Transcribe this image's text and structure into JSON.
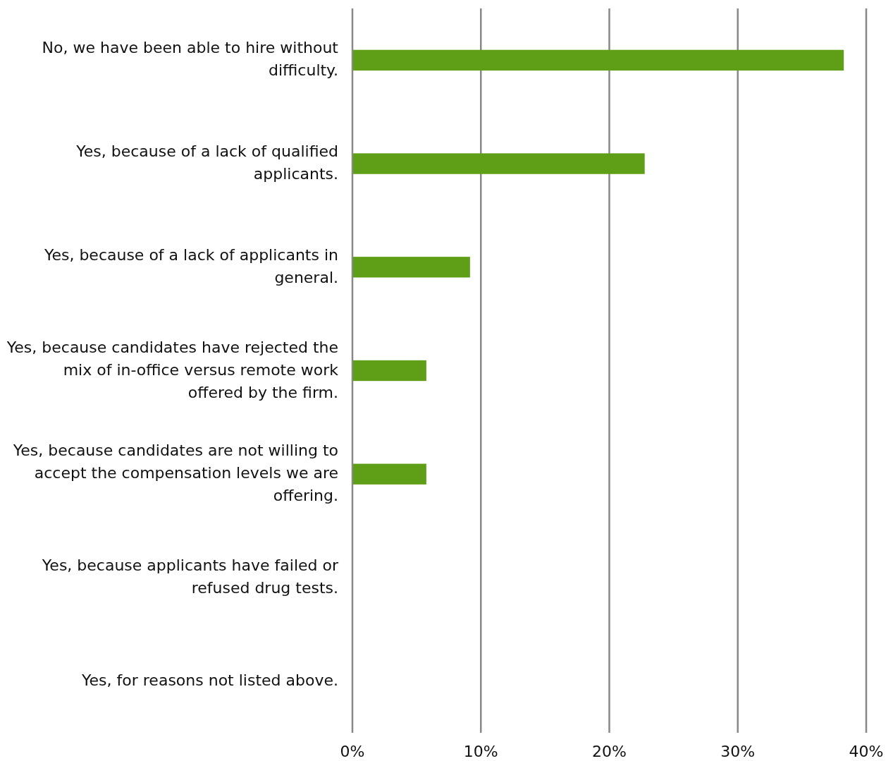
{
  "chart_data": {
    "type": "bar",
    "orientation": "horizontal",
    "categories": [
      "No, we have been able to hire without difficulty.",
      "Yes, because of a lack of qualified applicants.",
      "Yes, because of a lack of applicants in general.",
      "Yes, because candidates have rejected the mix of in-office versus remote work offered by the firm.",
      "Yes, because candidates are not willing to accept the compensation levels we are offering.",
      "Yes, because applicants have failed or refused drug tests.",
      "Yes, for reasons not listed above."
    ],
    "values": [
      38.2,
      22.7,
      9.1,
      5.7,
      5.7,
      0,
      0
    ],
    "color": "#5f9e17",
    "xlim": [
      0,
      40
    ],
    "xticks": [
      {
        "value": 0,
        "label": "0%"
      },
      {
        "value": 10,
        "label": "10%"
      },
      {
        "value": 20,
        "label": "20%"
      },
      {
        "value": 30,
        "label": "30%"
      },
      {
        "value": 40,
        "label": "40%"
      }
    ],
    "grid": "x"
  }
}
